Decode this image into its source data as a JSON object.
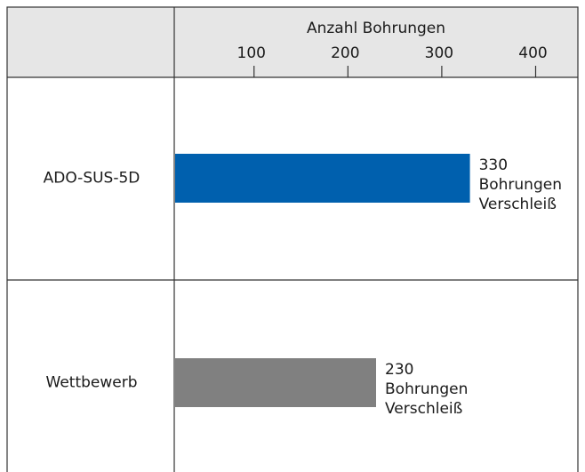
{
  "chart_data": {
    "type": "bar",
    "orientation": "horizontal",
    "xlabel": "Anzahl Bohrungen",
    "categories": [
      "ADO-SUS-5D",
      "Wettbewerb"
    ],
    "values": [
      330,
      230
    ],
    "colors": [
      "#0060ae",
      "#808080"
    ],
    "bar_note": [
      "Bohrungen",
      "Verschleiß"
    ],
    "xlim": [
      15,
      445
    ],
    "xticks": [
      100,
      200,
      300,
      400
    ]
  }
}
